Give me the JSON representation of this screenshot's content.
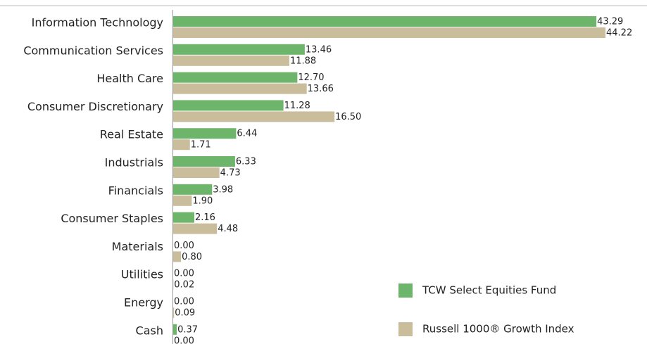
{
  "chart_data": {
    "type": "hbar",
    "categories": [
      "Information Technology",
      "Communication Services",
      "Health Care",
      "Consumer Discretionary",
      "Real Estate",
      "Industrials",
      "Financials",
      "Consumer Staples",
      "Materials",
      "Utilities",
      "Energy",
      "Cash"
    ],
    "series": [
      {
        "name": "TCW Select Equities Fund",
        "color": "#6db56b",
        "values": [
          43.29,
          13.46,
          12.7,
          11.28,
          6.44,
          6.33,
          3.98,
          2.16,
          0,
          0,
          0,
          0.37
        ],
        "value_labels": [
          "43.29",
          "13.46",
          "12.70",
          "11.28",
          "6.44",
          "6.33",
          "3.98",
          "2.16",
          "0.00",
          "0.00",
          "0.00",
          "0.37"
        ]
      },
      {
        "name": "Russell 1000® Growth Index",
        "color": "#c9bd9c",
        "values": [
          44.22,
          11.88,
          13.66,
          16.5,
          1.71,
          4.73,
          1.9,
          4.48,
          0.8,
          0.02,
          0.09,
          0
        ],
        "value_labels": [
          "44.22",
          "11.88",
          "13.66",
          "16.50",
          "1.71",
          "4.73",
          "1.90",
          "4.48",
          "0.80",
          "0.02",
          "0.09",
          "0.00"
        ]
      }
    ]
  }
}
